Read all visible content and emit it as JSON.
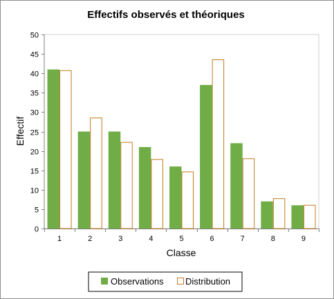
{
  "chart_data": {
    "type": "bar",
    "title": "Effectifs observés et théoriques",
    "xlabel": "Classe",
    "ylabel": "Effectif",
    "categories": [
      "1",
      "2",
      "3",
      "4",
      "5",
      "6",
      "7",
      "8",
      "9"
    ],
    "ylim": [
      0,
      50
    ],
    "yticks": [
      0,
      5,
      10,
      15,
      20,
      25,
      30,
      35,
      40,
      45,
      50
    ],
    "grid": false,
    "legend": "bottom",
    "series": [
      {
        "name": "Observations",
        "values": [
          41,
          25,
          25,
          21,
          16,
          37,
          22,
          7,
          6
        ],
        "color": "#70ad47",
        "style": "filled"
      },
      {
        "name": "Distribution",
        "values": [
          40.8,
          28.6,
          22.3,
          17.9,
          14.7,
          43.6,
          18.1,
          7.8,
          6.1
        ],
        "color": "#c07a1c",
        "style": "outline"
      }
    ]
  }
}
